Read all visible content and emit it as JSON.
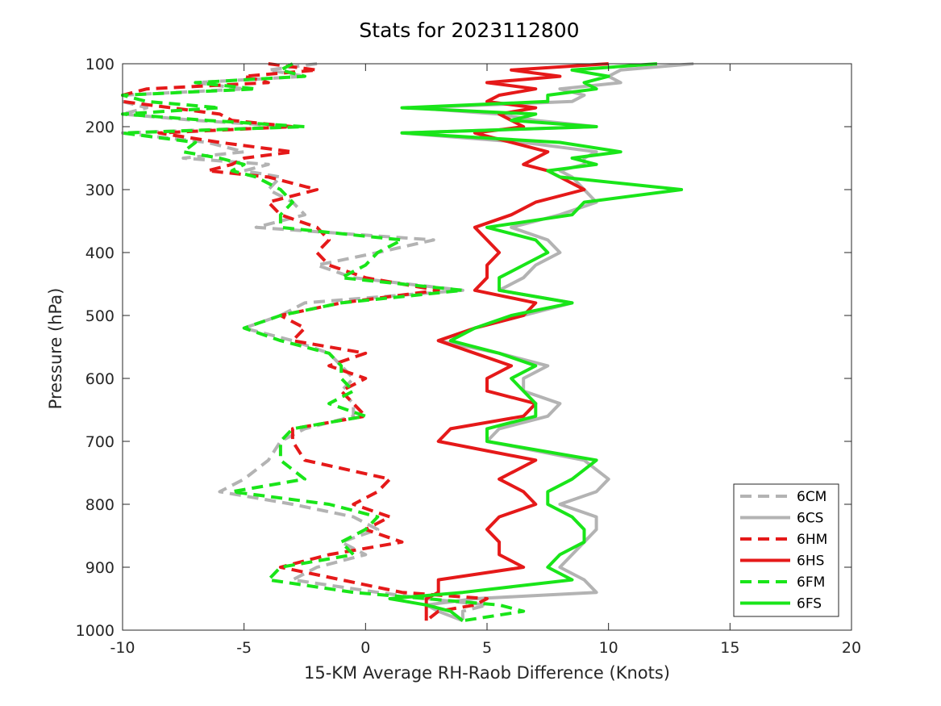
{
  "chart_data": {
    "type": "line",
    "title": "Stats for 2023112800",
    "xlabel": "15-KM Average RH-Raob Difference (Knots)",
    "ylabel": "Pressure (hPa)",
    "xlim": [
      -10,
      20
    ],
    "ylim": [
      100,
      1000
    ],
    "y_reversed": true,
    "x_ticks": [
      -10,
      -5,
      0,
      5,
      10,
      15,
      20
    ],
    "y_ticks": [
      100,
      200,
      300,
      400,
      500,
      600,
      700,
      800,
      900,
      1000
    ],
    "grid": false,
    "legend_position": "bottom-right",
    "pressure_levels": [
      100,
      110,
      120,
      130,
      140,
      150,
      160,
      170,
      180,
      190,
      200,
      210,
      225,
      240,
      250,
      260,
      270,
      280,
      300,
      320,
      340,
      360,
      380,
      400,
      420,
      440,
      460,
      480,
      500,
      520,
      540,
      560,
      580,
      600,
      620,
      640,
      660,
      680,
      700,
      730,
      760,
      780,
      800,
      820,
      840,
      860,
      880,
      900,
      920,
      940,
      950,
      960,
      970,
      985
    ],
    "series": [
      {
        "name": "6CM",
        "color": "#b3b3b3",
        "dash": true,
        "values": [
          -2.0,
          -4.0,
          -2.5,
          -7.0,
          -5.0,
          -10.0,
          -10.0,
          -9.0,
          -10.0,
          -7.0,
          -3.0,
          -10.0,
          -6.5,
          -5.0,
          -7.5,
          -4.0,
          -5.0,
          -3.5,
          -4.0,
          -3.0,
          -2.5,
          -4.5,
          2.8,
          0.5,
          -2.0,
          -0.5,
          4.0,
          -2.5,
          -3.5,
          -5.0,
          -3.0,
          -1.5,
          -1.0,
          -0.5,
          -1.0,
          -0.5,
          -0.5,
          -2.5,
          -3.5,
          -4.0,
          -5.0,
          -6.0,
          -3.0,
          -0.5,
          0.5,
          -1.0,
          0.0,
          -2.0,
          -3.0,
          0.5,
          2.5,
          5.0,
          4.0,
          4.0
        ]
      },
      {
        "name": "6CS",
        "color": "#b3b3b3",
        "dash": false,
        "values": [
          13.5,
          10.5,
          10.0,
          10.5,
          8.0,
          9.0,
          8.5,
          2.0,
          5.5,
          7.0,
          9.5,
          1.5,
          6.5,
          9.5,
          9.0,
          9.0,
          8.0,
          8.5,
          9.0,
          9.5,
          8.0,
          6.0,
          7.5,
          8.0,
          7.0,
          6.5,
          5.5,
          8.5,
          6.5,
          4.5,
          3.0,
          5.5,
          7.5,
          6.5,
          6.5,
          8.0,
          7.5,
          5.5,
          5.0,
          9.0,
          10.0,
          9.5,
          8.0,
          9.5,
          9.5,
          9.0,
          8.5,
          8.0,
          9.0,
          9.5,
          4.5,
          2.5,
          3.0,
          4.0
        ]
      },
      {
        "name": "6HM",
        "color": "#e51919",
        "dash": true,
        "values": [
          -4.0,
          -2.0,
          -5.0,
          -4.0,
          -9.0,
          -10.0,
          -10.0,
          -8.0,
          -6.0,
          -5.5,
          -3.0,
          -8.5,
          -6.0,
          -3.0,
          -5.0,
          -5.5,
          -6.5,
          -4.0,
          -2.0,
          -4.0,
          -3.5,
          -2.0,
          -1.5,
          -2.0,
          -1.5,
          0.0,
          3.0,
          -1.0,
          -3.5,
          -2.5,
          -3.0,
          0.0,
          -1.5,
          0.0,
          -1.0,
          -0.5,
          0.0,
          -3.0,
          -3.0,
          -2.5,
          1.0,
          0.5,
          -0.5,
          1.0,
          0.0,
          1.5,
          -1.5,
          -3.5,
          -1.0,
          1.5,
          5.0,
          4.5,
          3.0,
          2.5
        ]
      },
      {
        "name": "6HS",
        "color": "#e51919",
        "dash": false,
        "values": [
          10.0,
          6.0,
          8.0,
          5.0,
          7.0,
          5.5,
          5.0,
          7.0,
          5.5,
          6.0,
          6.5,
          4.5,
          6.0,
          7.5,
          7.0,
          6.5,
          7.5,
          8.0,
          9.0,
          7.0,
          6.0,
          4.5,
          5.0,
          5.5,
          5.0,
          5.0,
          4.5,
          7.0,
          6.5,
          4.5,
          3.0,
          4.5,
          6.0,
          5.0,
          5.0,
          7.0,
          6.5,
          3.5,
          3.0,
          7.0,
          5.5,
          6.5,
          7.0,
          5.5,
          5.0,
          5.5,
          5.5,
          6.5,
          3.0,
          3.0,
          2.5,
          2.5,
          2.5,
          2.5
        ]
      },
      {
        "name": "6FM",
        "color": "#19e519",
        "dash": true,
        "values": [
          -3.0,
          -3.5,
          -2.5,
          -7.0,
          -4.5,
          -10.0,
          -9.0,
          -6.0,
          -10.0,
          -6.5,
          -2.5,
          -10.0,
          -7.0,
          -7.5,
          -6.0,
          -5.0,
          -5.5,
          -4.5,
          -3.5,
          -3.0,
          -3.5,
          -3.5,
          1.5,
          0.5,
          0.0,
          -1.0,
          4.0,
          -1.0,
          -3.5,
          -5.0,
          -3.5,
          -1.5,
          -1.0,
          -1.0,
          -0.5,
          -1.5,
          0.0,
          -3.0,
          -3.5,
          -3.5,
          -2.5,
          -5.5,
          -1.5,
          0.5,
          0.0,
          -1.0,
          -0.5,
          -3.5,
          -4.0,
          -0.5,
          2.5,
          5.5,
          6.5,
          4.0
        ]
      },
      {
        "name": "6FS",
        "color": "#19e519",
        "dash": false,
        "values": [
          12.0,
          8.5,
          10.0,
          9.0,
          9.5,
          7.5,
          7.5,
          1.5,
          7.0,
          6.0,
          9.5,
          1.5,
          8.0,
          10.5,
          8.5,
          9.5,
          7.5,
          8.0,
          13.0,
          9.0,
          8.5,
          5.0,
          7.0,
          7.5,
          6.5,
          5.5,
          5.5,
          8.5,
          6.0,
          4.5,
          3.5,
          5.5,
          7.0,
          6.0,
          6.5,
          7.0,
          7.0,
          5.0,
          5.0,
          9.5,
          8.5,
          7.5,
          7.5,
          8.5,
          9.0,
          9.0,
          8.0,
          7.5,
          8.5,
          4.0,
          1.0,
          2.5,
          3.5,
          4.0
        ]
      }
    ]
  }
}
